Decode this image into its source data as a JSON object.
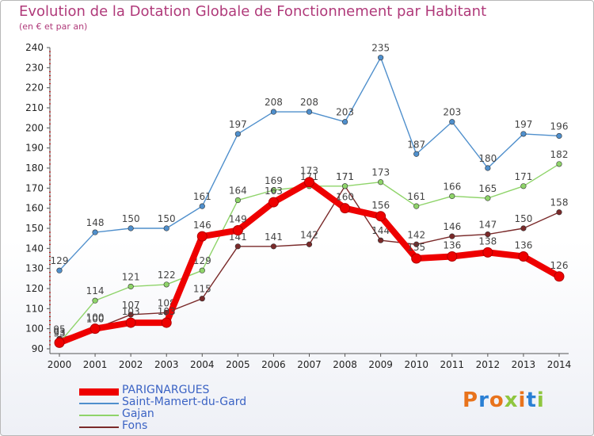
{
  "header": {
    "title": "Evolution de la Dotation Globale de Fonctionnement par Habitant",
    "subtitle": "(en € et par an)"
  },
  "logo": {
    "text": "Proxiti"
  },
  "chart_data": {
    "type": "line",
    "title": "Evolution de la Dotation Globale de Fonctionnement par Habitant",
    "subtitle": "(en € et par an)",
    "categories": [
      "2000",
      "2001",
      "2002",
      "2003",
      "2004",
      "2005",
      "2006",
      "2007",
      "2008",
      "2009",
      "2010",
      "2011",
      "2012",
      "2013",
      "2014"
    ],
    "ylim": [
      90,
      240
    ],
    "yticks": [
      90,
      100,
      110,
      120,
      130,
      140,
      150,
      160,
      170,
      180,
      190,
      200,
      210,
      220,
      230,
      240
    ],
    "grid": false,
    "legend_position": "bottom-left",
    "series": [
      {
        "name": "Fons",
        "color": "#7a2a2a",
        "values": [
          95,
          100,
          107,
          108,
          115,
          141,
          141,
          142,
          171,
          144,
          142,
          146,
          147,
          150,
          158
        ]
      },
      {
        "name": "Gajan",
        "color": "#8fd46a",
        "values": [
          93,
          114,
          121,
          122,
          129,
          164,
          169,
          171,
          171,
          173,
          161,
          166,
          165,
          171,
          182
        ]
      },
      {
        "name": "Saint-Mamert-du-Gard",
        "color": "#4f8fcc",
        "values": [
          129,
          148,
          150,
          150,
          161,
          197,
          208,
          208,
          203,
          235,
          187,
          203,
          180,
          197,
          196
        ]
      },
      {
        "name": "PARIGNARGUES",
        "color": "#ee0000",
        "values": [
          93,
          100,
          103,
          103,
          146,
          149,
          163,
          173,
          160,
          156,
          135,
          136,
          138,
          136,
          126
        ]
      }
    ],
    "legend": [
      "PARIGNARGUES",
      "Saint-Mamert-du-Gard",
      "Gajan",
      "Fons"
    ]
  }
}
